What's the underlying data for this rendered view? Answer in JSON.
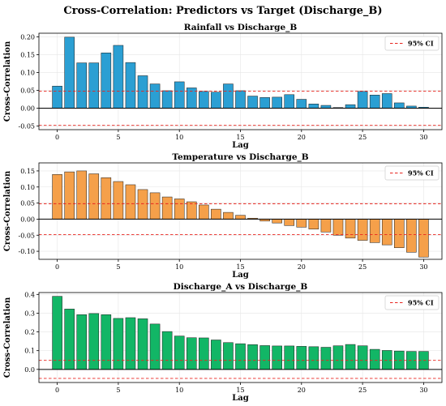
{
  "figure": {
    "title": "Cross-Correlation: Predictors vs Target (Discharge_B)"
  },
  "colors": {
    "bar_stroke": "#1a1a1a",
    "ci_line": "#e8251f",
    "zero_line": "#000000",
    "grid": "#e6e6e6"
  },
  "chart_data": [
    {
      "type": "bar",
      "title": "Rainfall vs Discharge_B",
      "xlabel": "Lag",
      "ylabel": "Cross-Correlation",
      "color": "#2b9fd3",
      "x": [
        0,
        1,
        2,
        3,
        4,
        5,
        6,
        7,
        8,
        9,
        10,
        11,
        12,
        13,
        14,
        15,
        16,
        17,
        18,
        19,
        20,
        21,
        22,
        23,
        24,
        25,
        26,
        27,
        28,
        29,
        30
      ],
      "values": [
        0.062,
        0.199,
        0.127,
        0.127,
        0.155,
        0.176,
        0.128,
        0.091,
        0.068,
        0.049,
        0.074,
        0.057,
        0.047,
        0.045,
        0.068,
        0.049,
        0.034,
        0.03,
        0.031,
        0.038,
        0.025,
        0.012,
        0.008,
        0.002,
        0.01,
        0.047,
        0.037,
        0.041,
        0.015,
        0.006,
        0.003
      ],
      "ci": 0.048,
      "ci_label": "95% CI",
      "ylim": [
        -0.06,
        0.21
      ],
      "yticks": [
        -0.05,
        0.0,
        0.05,
        0.1,
        0.15,
        0.2
      ],
      "ytick_labels": [
        "-0.05",
        "0.00",
        "0.05",
        "0.10",
        "0.15",
        "0.20"
      ],
      "xticks": [
        0,
        5,
        10,
        15,
        20,
        25,
        30
      ],
      "xlim": [
        -1.5,
        31.5
      ],
      "grid": true,
      "legend": "top-right"
    },
    {
      "type": "bar",
      "title": "Temperature vs Discharge_B",
      "xlabel": "Lag",
      "ylabel": "Cross-Correlation",
      "color": "#f5a04a",
      "x": [
        0,
        1,
        2,
        3,
        4,
        5,
        6,
        7,
        8,
        9,
        10,
        11,
        12,
        13,
        14,
        15,
        16,
        17,
        18,
        19,
        20,
        21,
        22,
        23,
        24,
        25,
        26,
        27,
        28,
        29,
        30
      ],
      "values": [
        0.139,
        0.147,
        0.15,
        0.141,
        0.129,
        0.117,
        0.107,
        0.092,
        0.082,
        0.069,
        0.063,
        0.054,
        0.044,
        0.031,
        0.021,
        0.012,
        0.003,
        -0.006,
        -0.012,
        -0.02,
        -0.025,
        -0.031,
        -0.04,
        -0.05,
        -0.059,
        -0.066,
        -0.073,
        -0.08,
        -0.089,
        -0.103,
        -0.118
      ],
      "ci": 0.048,
      "ci_label": "95% CI",
      "ylim": [
        -0.125,
        0.175
      ],
      "yticks": [
        -0.1,
        -0.05,
        0.0,
        0.05,
        0.1,
        0.15
      ],
      "ytick_labels": [
        "-0.10",
        "-0.05",
        "0.00",
        "0.05",
        "0.10",
        "0.15"
      ],
      "xticks": [
        0,
        5,
        10,
        15,
        20,
        25,
        30
      ],
      "xlim": [
        -1.5,
        31.5
      ],
      "grid": true,
      "legend": "top-right"
    },
    {
      "type": "bar",
      "title": "Discharge_A vs Discharge_B",
      "xlabel": "Lag",
      "ylabel": "Cross-Correlation",
      "color": "#12b666",
      "x": [
        0,
        1,
        2,
        3,
        4,
        5,
        6,
        7,
        8,
        9,
        10,
        11,
        12,
        13,
        14,
        15,
        16,
        17,
        18,
        19,
        20,
        21,
        22,
        23,
        24,
        25,
        26,
        27,
        28,
        29,
        30
      ],
      "values": [
        0.39,
        0.322,
        0.292,
        0.298,
        0.292,
        0.272,
        0.276,
        0.27,
        0.242,
        0.202,
        0.178,
        0.169,
        0.168,
        0.157,
        0.143,
        0.137,
        0.132,
        0.127,
        0.125,
        0.125,
        0.123,
        0.121,
        0.118,
        0.126,
        0.133,
        0.126,
        0.107,
        0.101,
        0.098,
        0.096,
        0.096
      ],
      "ci": 0.048,
      "ci_label": "95% CI",
      "ylim": [
        -0.07,
        0.41
      ],
      "yticks": [
        0.0,
        0.1,
        0.2,
        0.3,
        0.4
      ],
      "ytick_labels": [
        "0.0",
        "0.1",
        "0.2",
        "0.3",
        "0.4"
      ],
      "xticks": [
        0,
        5,
        10,
        15,
        20,
        25,
        30
      ],
      "xlim": [
        -1.5,
        31.5
      ],
      "grid": true,
      "legend": "top-right"
    }
  ]
}
